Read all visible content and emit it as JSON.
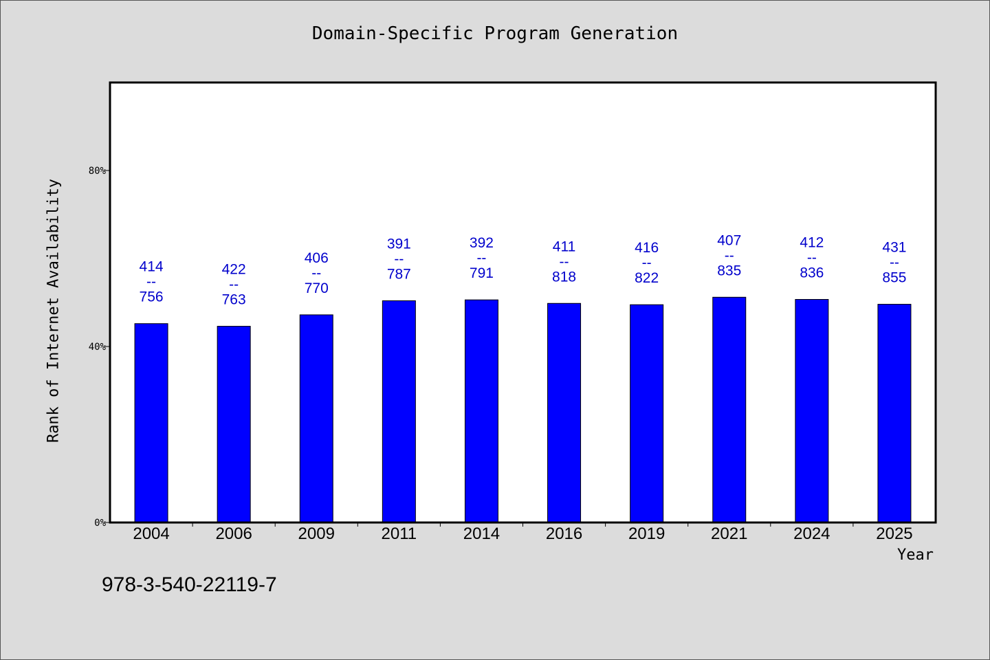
{
  "chart_data": {
    "type": "bar",
    "title": "Domain-Specific Program Generation",
    "xlabel": "Year",
    "ylabel": "Rank of Internet Availability",
    "categories": [
      "2004",
      "2006",
      "2009",
      "2011",
      "2014",
      "2016",
      "2019",
      "2021",
      "2024",
      "2025"
    ],
    "values": [
      45.2,
      44.6,
      47.2,
      50.4,
      50.6,
      49.8,
      49.5,
      51.2,
      50.7,
      49.6
    ],
    "data_labels": [
      [
        "414",
        "--",
        "756"
      ],
      [
        "422",
        "--",
        "763"
      ],
      [
        "406",
        "--",
        "770"
      ],
      [
        "391",
        "--",
        "787"
      ],
      [
        "392",
        "--",
        "791"
      ],
      [
        "411",
        "--",
        "818"
      ],
      [
        "416",
        "--",
        "822"
      ],
      [
        "407",
        "--",
        "835"
      ],
      [
        "412",
        "--",
        "836"
      ],
      [
        "431",
        "--",
        "855"
      ]
    ],
    "yticks": [
      0,
      40,
      80
    ],
    "ytick_labels": [
      "0%",
      "40%",
      "80%"
    ],
    "ylim": [
      0,
      100
    ],
    "bar_color": "#0000ff",
    "label_color": "#0000cc",
    "grid": false,
    "legend": "none"
  },
  "footer": {
    "code": "978-3-540-22119-7"
  }
}
